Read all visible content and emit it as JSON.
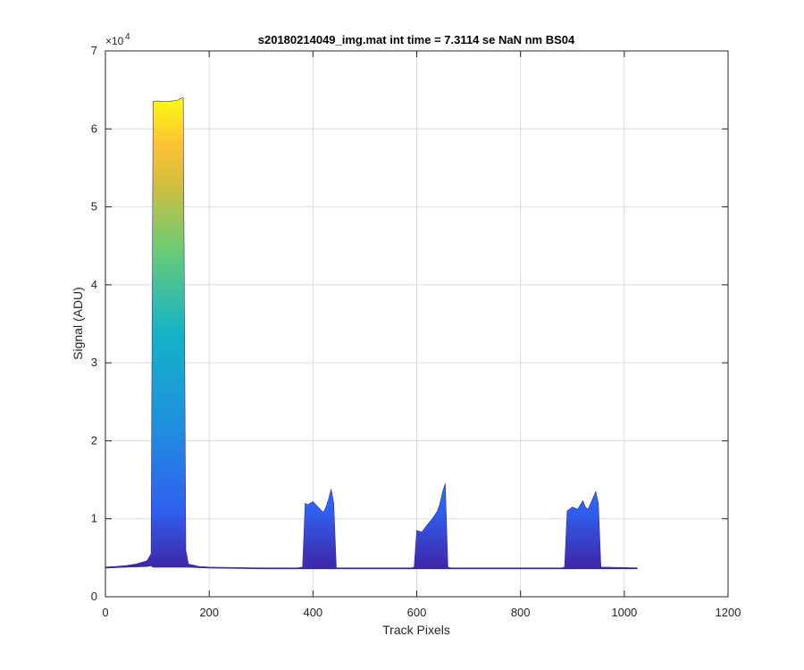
{
  "chart_data": {
    "type": "area",
    "title": "s20180214049_img.mat int time = 7.3114 se  NaN nm BS04",
    "xlabel": "Track Pixels",
    "ylabel": "Signal (ADU)",
    "xlim": [
      0,
      1200
    ],
    "ylim": [
      0,
      70000
    ],
    "x_ticks": [
      "0",
      "200",
      "400",
      "600",
      "800",
      "1000",
      "1200"
    ],
    "y_ticks": [
      "0",
      "1",
      "2",
      "3",
      "4",
      "5",
      "6",
      "7"
    ],
    "y_exponent_base": "×10",
    "y_exponent_power": "4",
    "grid": true,
    "colormap": "parula",
    "colors": {
      "low": "#3E26A8",
      "mid1": "#2F6BFF",
      "mid2": "#19B2C8",
      "mid3": "#7DC96F",
      "high": "#F9FB0E"
    },
    "series": [
      {
        "x": [
          0,
          20,
          40,
          60,
          80,
          88,
          92,
          95,
          100,
          110,
          120,
          130,
          140,
          145,
          150,
          155,
          160,
          180,
          200,
          250,
          300,
          370,
          380,
          385,
          390,
          400,
          410,
          420,
          425,
          430,
          435,
          440,
          445,
          450,
          500,
          590,
          595,
          600,
          610,
          620,
          630,
          640,
          645,
          650,
          655,
          660,
          665,
          700,
          800,
          880,
          885,
          890,
          900,
          910,
          920,
          925,
          930,
          940,
          945,
          950,
          955,
          1000,
          1025
        ],
        "max": [
          3800,
          3900,
          4000,
          4200,
          4600,
          5500,
          63500,
          63500,
          63600,
          63500,
          63500,
          63600,
          63700,
          63900,
          64000,
          6000,
          4200,
          3900,
          3800,
          3750,
          3700,
          3700,
          3800,
          12000,
          11800,
          12200,
          11500,
          10800,
          11500,
          12500,
          13800,
          12000,
          3700,
          3700,
          3700,
          3700,
          3800,
          8500,
          8300,
          9200,
          10000,
          11000,
          12000,
          13500,
          14500,
          3800,
          3700,
          3700,
          3700,
          3700,
          3800,
          11000,
          11500,
          11200,
          12300,
          11500,
          11200,
          12700,
          13500,
          12000,
          3800,
          3750,
          3700
        ],
        "min": [
          3700,
          3750,
          3800,
          3850,
          3900,
          4000,
          3800,
          3800,
          3800,
          3800,
          3800,
          3800,
          3800,
          3800,
          3800,
          3800,
          3800,
          3750,
          3700,
          3650,
          3600,
          3600,
          3600,
          3600,
          3600,
          3600,
          3600,
          3600,
          3600,
          3600,
          3600,
          3600,
          3600,
          3600,
          3600,
          3600,
          3600,
          3600,
          3600,
          3600,
          3600,
          3600,
          3600,
          3600,
          3600,
          3600,
          3600,
          3600,
          3600,
          3600,
          3600,
          3600,
          3600,
          3600,
          3600,
          3600,
          3600,
          3600,
          3600,
          3600,
          3600,
          3600,
          3600
        ]
      }
    ]
  }
}
